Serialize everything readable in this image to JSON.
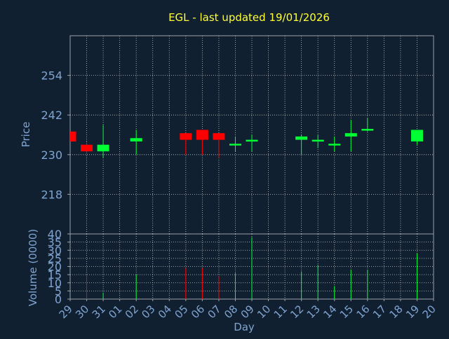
{
  "chart_data": [
    {
      "type": "candlestick",
      "title": "EGL - last updated 19/01/2026",
      "ylabel": "Price",
      "xlabel": "",
      "ylim": [
        206,
        266
      ],
      "yticks": [
        218,
        230,
        242,
        254
      ],
      "grid": true,
      "colors": {
        "up": "#00ff33",
        "down": "#ff0000",
        "title": "#ffff33",
        "axis_text": "#7fa4d2",
        "background": "#112030"
      },
      "candles": [
        {
          "date": "29/12/2025",
          "open": 237,
          "close": 234,
          "high": 237,
          "low": 234
        },
        {
          "date": "30/12/2025",
          "open": 233,
          "close": 231,
          "high": 234,
          "low": 230
        },
        {
          "date": "31/12/2025",
          "open": 231,
          "close": 233,
          "high": 239,
          "low": 229
        },
        {
          "date": "02/01/2026",
          "open": 234,
          "close": 235,
          "high": 237.5,
          "low": 230
        },
        {
          "date": "05/01/2026",
          "open": 236.5,
          "close": 234.5,
          "high": 236.5,
          "low": 230
        },
        {
          "date": "06/01/2026",
          "open": 237.5,
          "close": 234.5,
          "high": 237.5,
          "low": 230
        },
        {
          "date": "07/01/2026",
          "open": 236.5,
          "close": 234.5,
          "high": 236.5,
          "low": 229
        },
        {
          "date": "08/01/2026",
          "open": 233,
          "close": 233.3,
          "high": 235.5,
          "low": 231
        },
        {
          "date": "09/01/2026",
          "open": 234.2,
          "close": 234.5,
          "high": 236,
          "low": 231
        },
        {
          "date": "12/01/2026",
          "open": 234.5,
          "close": 235.5,
          "high": 236,
          "low": 230
        },
        {
          "date": "13/01/2026",
          "open": 234.2,
          "close": 234.5,
          "high": 236,
          "low": 232
        },
        {
          "date": "14/01/2026",
          "open": 233,
          "close": 233.3,
          "high": 235.5,
          "low": 231
        },
        {
          "date": "15/01/2026",
          "open": 235.5,
          "close": 236.5,
          "high": 240.5,
          "low": 231
        },
        {
          "date": "16/01/2026",
          "open": 237.5,
          "close": 237.8,
          "high": 241,
          "low": 237
        },
        {
          "date": "19/01/2026",
          "open": 234,
          "close": 237.5,
          "high": 237.5,
          "low": 233
        }
      ]
    },
    {
      "type": "bar",
      "ylabel": "Volume (0000)",
      "xlabel": "Day",
      "ylim": [
        0,
        40
      ],
      "yticks": [
        0,
        5,
        10,
        15,
        20,
        25,
        30,
        35,
        40
      ],
      "grid": true,
      "x_tick_labels": [
        "29",
        "30",
        "31",
        "01",
        "02",
        "03",
        "04",
        "05",
        "06",
        "07",
        "08",
        "09",
        "10",
        "11",
        "12",
        "13",
        "14",
        "15",
        "16",
        "17",
        "18",
        "19",
        "20"
      ],
      "bars": [
        {
          "date": "30/12/2025",
          "value": 15,
          "direction": "down"
        },
        {
          "date": "31/12/2025",
          "value": 4,
          "direction": "up"
        },
        {
          "date": "02/01/2026",
          "value": 15,
          "direction": "up"
        },
        {
          "date": "05/01/2026",
          "value": 19,
          "direction": "down"
        },
        {
          "date": "06/01/2026",
          "value": 19,
          "direction": "down"
        },
        {
          "date": "07/01/2026",
          "value": 14,
          "direction": "down"
        },
        {
          "date": "08/01/2026",
          "value": 16,
          "direction": "up"
        },
        {
          "date": "09/01/2026",
          "value": 38,
          "direction": "up"
        },
        {
          "date": "12/01/2026",
          "value": 17,
          "direction": "up"
        },
        {
          "date": "13/01/2026",
          "value": 21,
          "direction": "up"
        },
        {
          "date": "14/01/2026",
          "value": 8,
          "direction": "up"
        },
        {
          "date": "15/01/2026",
          "value": 18,
          "direction": "up"
        },
        {
          "date": "16/01/2026",
          "value": 18,
          "direction": "up"
        },
        {
          "date": "19/01/2026",
          "value": 28,
          "direction": "up"
        }
      ]
    }
  ]
}
